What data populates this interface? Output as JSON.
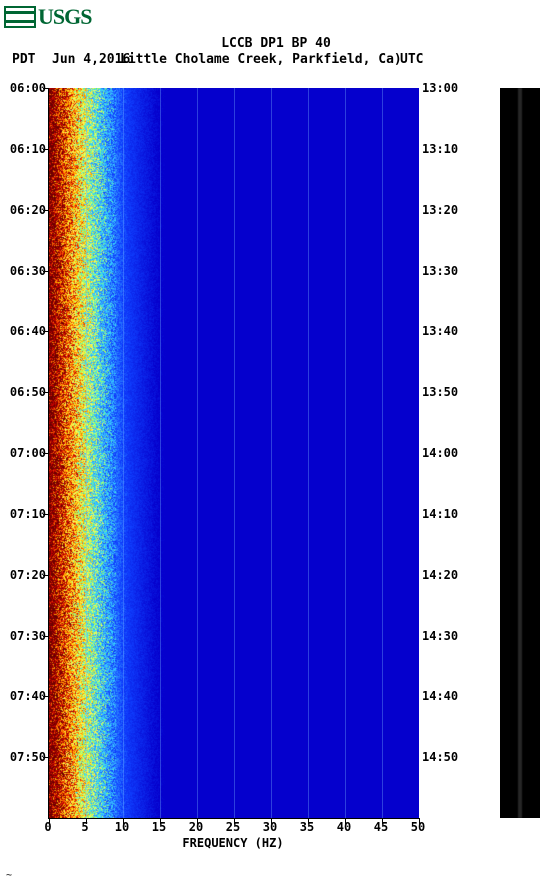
{
  "logo": {
    "text": "USGS"
  },
  "header": {
    "title": "LCCB DP1 BP 40",
    "left_tz": "PDT",
    "date": "Jun 4,2016",
    "location": "Little Cholame Creek, Parkfield, Ca)",
    "right_tz": "UTC"
  },
  "spectrogram": {
    "type": "spectrogram",
    "x_axis": {
      "label": "FREQUENCY (HZ)",
      "min": 0,
      "max": 50,
      "ticks": [
        0,
        5,
        10,
        15,
        20,
        25,
        30,
        35,
        40,
        45,
        50
      ],
      "fontsize": 12
    },
    "y_axis_left": {
      "label": "PDT",
      "ticks": [
        "06:00",
        "06:10",
        "06:20",
        "06:30",
        "06:40",
        "06:50",
        "07:00",
        "07:10",
        "07:20",
        "07:30",
        "07:40",
        "07:50"
      ],
      "fontsize": 12
    },
    "y_axis_right": {
      "label": "UTC",
      "ticks": [
        "13:00",
        "13:10",
        "13:20",
        "13:30",
        "13:40",
        "13:50",
        "14:00",
        "14:10",
        "14:20",
        "14:30",
        "14:40",
        "14:50"
      ],
      "fontsize": 12
    },
    "colormap": {
      "stops": [
        {
          "t": 0.0,
          "color": "#6b0000"
        },
        {
          "t": 0.03,
          "color": "#cc0000"
        },
        {
          "t": 0.05,
          "color": "#ff6600"
        },
        {
          "t": 0.07,
          "color": "#ffcc00"
        },
        {
          "t": 0.09,
          "color": "#ffff66"
        },
        {
          "t": 0.11,
          "color": "#99ff66"
        },
        {
          "t": 0.13,
          "color": "#33ddff"
        },
        {
          "t": 0.16,
          "color": "#3399ff"
        },
        {
          "t": 0.2,
          "color": "#1040ff"
        },
        {
          "t": 0.3,
          "color": "#0500cd"
        },
        {
          "t": 1.0,
          "color": "#0500cd"
        }
      ],
      "noise_seed": 17
    },
    "background_color": "#ffffff",
    "grid_color": "#6aa8ff",
    "plot_bg": "#0500cd"
  },
  "waveform_panel": {
    "bg": "#000000"
  },
  "footnote": "~"
}
